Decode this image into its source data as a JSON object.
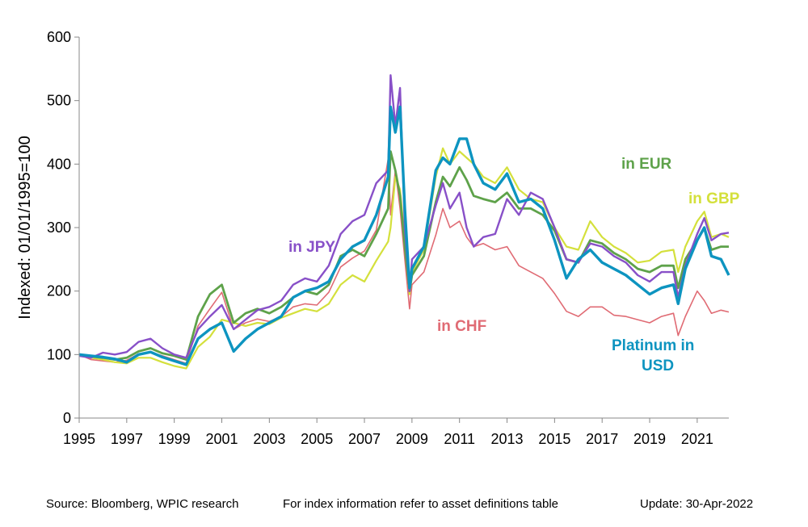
{
  "chart_data": {
    "type": "line",
    "title": "",
    "xlabel": "",
    "ylabel": "Indexed: 01/01/1995=100",
    "xlim": [
      1995,
      2022.33
    ],
    "ylim": [
      0,
      600
    ],
    "y_ticks": [
      "0",
      "100",
      "200",
      "300",
      "400",
      "500",
      "600"
    ],
    "x_ticks": [
      "1995",
      "1997",
      "1999",
      "2001",
      "2003",
      "2005",
      "2007",
      "2009",
      "2011",
      "2013",
      "2015",
      "2017",
      "2019",
      "2021"
    ],
    "grid": false,
    "legend": "inline labels",
    "series": [
      {
        "name": "in CHF",
        "color": "#e06b74",
        "x": [
          1995,
          1995.5,
          1996,
          1996.5,
          1997,
          1997.5,
          1998,
          1998.5,
          1999,
          1999.5,
          2000,
          2000.5,
          2001,
          2001.5,
          2002,
          2002.5,
          2003,
          2003.5,
          2004,
          2004.5,
          2005,
          2005.5,
          2006,
          2006.5,
          2007,
          2007.5,
          2008,
          2008.1,
          2008.3,
          2008.5,
          2008.7,
          2008.9,
          2009,
          2009.5,
          2010,
          2010.3,
          2010.6,
          2011,
          2011.3,
          2011.6,
          2012,
          2012.5,
          2013,
          2013.5,
          2014,
          2014.5,
          2015,
          2015.5,
          2016,
          2016.5,
          2017,
          2017.5,
          2018,
          2018.5,
          2019,
          2019.5,
          2020,
          2020.2,
          2020.5,
          2021,
          2021.3,
          2021.6,
          2022,
          2022.33
        ],
        "values": [
          100,
          92,
          90,
          88,
          91,
          101,
          104,
          98,
          92,
          86,
          145,
          172,
          198,
          140,
          150,
          156,
          152,
          160,
          175,
          180,
          178,
          198,
          238,
          252,
          263,
          296,
          408,
          320,
          390,
          330,
          250,
          172,
          210,
          230,
          288,
          330,
          300,
          310,
          285,
          270,
          275,
          265,
          270,
          240,
          230,
          220,
          196,
          168,
          160,
          175,
          175,
          162,
          160,
          155,
          150,
          160,
          165,
          130,
          160,
          200,
          185,
          165,
          170,
          167
        ]
      },
      {
        "name": "in GBP",
        "color": "#d4e03c",
        "x": [
          1995,
          1995.5,
          1996,
          1996.5,
          1997,
          1997.5,
          1998,
          1998.5,
          1999,
          1999.5,
          2000,
          2000.5,
          2001,
          2001.5,
          2002,
          2002.5,
          2003,
          2003.5,
          2004,
          2004.5,
          2005,
          2005.5,
          2006,
          2006.5,
          2007,
          2007.5,
          2008,
          2008.1,
          2008.3,
          2008.5,
          2008.7,
          2008.9,
          2009,
          2009.5,
          2010,
          2010.3,
          2010.6,
          2011,
          2011.3,
          2011.6,
          2012,
          2012.5,
          2013,
          2013.5,
          2014,
          2014.5,
          2015,
          2015.5,
          2016,
          2016.5,
          2017,
          2017.5,
          2018,
          2018.5,
          2019,
          2019.5,
          2020,
          2020.2,
          2020.5,
          2021,
          2021.3,
          2021.6,
          2022,
          2022.33
        ],
        "values": [
          100,
          95,
          92,
          88,
          86,
          95,
          95,
          88,
          82,
          78,
          112,
          128,
          155,
          150,
          145,
          150,
          148,
          158,
          165,
          172,
          168,
          180,
          210,
          225,
          215,
          248,
          278,
          300,
          380,
          360,
          280,
          195,
          230,
          265,
          380,
          425,
          400,
          420,
          410,
          400,
          380,
          370,
          395,
          360,
          345,
          340,
          300,
          270,
          265,
          310,
          285,
          270,
          260,
          245,
          248,
          262,
          265,
          230,
          270,
          310,
          325,
          285,
          290,
          285
        ]
      },
      {
        "name": "in EUR",
        "color": "#5ea24a",
        "x": [
          1995,
          1995.5,
          1996,
          1996.5,
          1997,
          1997.5,
          1998,
          1998.5,
          1999,
          1999.5,
          2000,
          2000.5,
          2001,
          2001.5,
          2002,
          2002.5,
          2003,
          2003.5,
          2004,
          2004.5,
          2005,
          2005.5,
          2006,
          2006.5,
          2007,
          2007.5,
          2008,
          2008.1,
          2008.3,
          2008.5,
          2008.7,
          2008.9,
          2009,
          2009.5,
          2010,
          2010.3,
          2010.6,
          2011,
          2011.3,
          2011.6,
          2012,
          2012.5,
          2013,
          2013.5,
          2014,
          2014.5,
          2015,
          2015.5,
          2016,
          2016.5,
          2017,
          2017.5,
          2018,
          2018.5,
          2019,
          2019.5,
          2020,
          2020.2,
          2020.5,
          2021,
          2021.3,
          2021.6,
          2022,
          2022.33
        ],
        "values": [
          100,
          97,
          95,
          92,
          95,
          105,
          110,
          102,
          98,
          92,
          160,
          195,
          210,
          150,
          165,
          172,
          165,
          175,
          190,
          200,
          195,
          210,
          255,
          265,
          255,
          290,
          330,
          420,
          390,
          350,
          270,
          200,
          225,
          255,
          340,
          380,
          365,
          395,
          375,
          350,
          345,
          340,
          355,
          330,
          330,
          320,
          295,
          250,
          245,
          280,
          275,
          260,
          250,
          235,
          230,
          240,
          240,
          205,
          250,
          280,
          300,
          265,
          270,
          270
        ]
      },
      {
        "name": "in JPY",
        "color": "#8850c8",
        "x": [
          1995,
          1995.5,
          1996,
          1996.5,
          1997,
          1997.5,
          1998,
          1998.5,
          1999,
          1999.5,
          2000,
          2000.5,
          2001,
          2001.5,
          2002,
          2002.5,
          2003,
          2003.5,
          2004,
          2004.5,
          2005,
          2005.5,
          2006,
          2006.5,
          2007,
          2007.5,
          2008,
          2008.1,
          2008.3,
          2008.5,
          2008.7,
          2008.9,
          2009,
          2009.5,
          2010,
          2010.3,
          2010.6,
          2011,
          2011.3,
          2011.6,
          2012,
          2012.5,
          2013,
          2013.5,
          2014,
          2014.5,
          2015,
          2015.5,
          2016,
          2016.5,
          2017,
          2017.5,
          2018,
          2018.5,
          2019,
          2019.5,
          2020,
          2020.2,
          2020.5,
          2021,
          2021.3,
          2021.6,
          2022,
          2022.33
        ],
        "values": [
          98,
          95,
          103,
          100,
          104,
          120,
          125,
          110,
          100,
          95,
          140,
          160,
          178,
          140,
          155,
          170,
          175,
          185,
          210,
          220,
          215,
          240,
          290,
          310,
          320,
          370,
          390,
          540,
          460,
          520,
          300,
          200,
          250,
          270,
          335,
          370,
          330,
          355,
          300,
          270,
          285,
          290,
          345,
          320,
          355,
          345,
          300,
          250,
          245,
          275,
          270,
          255,
          245,
          225,
          215,
          230,
          230,
          190,
          240,
          290,
          315,
          280,
          290,
          292
        ]
      },
      {
        "name": "Platinum in USD",
        "color": "#0d94c0",
        "x": [
          1995,
          1995.5,
          1996,
          1996.5,
          1997,
          1997.5,
          1998,
          1998.5,
          1999,
          1999.5,
          2000,
          2000.5,
          2001,
          2001.5,
          2002,
          2002.5,
          2003,
          2003.5,
          2004,
          2004.5,
          2005,
          2005.5,
          2006,
          2006.5,
          2007,
          2007.5,
          2008,
          2008.1,
          2008.3,
          2008.5,
          2008.7,
          2008.9,
          2009,
          2009.5,
          2010,
          2010.3,
          2010.6,
          2011,
          2011.3,
          2011.6,
          2012,
          2012.5,
          2013,
          2013.5,
          2014,
          2014.5,
          2015,
          2015.5,
          2016,
          2016.5,
          2017,
          2017.5,
          2018,
          2018.5,
          2019,
          2019.5,
          2020,
          2020.2,
          2020.5,
          2021,
          2021.3,
          2021.6,
          2022,
          2022.33
        ],
        "values": [
          100,
          98,
          96,
          93,
          88,
          100,
          104,
          96,
          90,
          84,
          125,
          140,
          150,
          105,
          125,
          140,
          150,
          160,
          190,
          200,
          205,
          215,
          250,
          270,
          280,
          320,
          380,
          490,
          450,
          490,
          330,
          205,
          235,
          270,
          390,
          410,
          400,
          440,
          440,
          400,
          370,
          360,
          385,
          340,
          345,
          330,
          280,
          220,
          250,
          265,
          245,
          235,
          225,
          210,
          195,
          205,
          210,
          180,
          235,
          280,
          300,
          255,
          250,
          225
        ]
      }
    ]
  },
  "labels": {
    "jpy": "in JPY",
    "eur": "in EUR",
    "gbp": "in GBP",
    "chf": "in CHF",
    "usd_line1": "Platinum  in",
    "usd_line2": "USD"
  },
  "footer": {
    "source": "Source: Bloomberg, WPIC research",
    "note": "For index information refer to asset definitions table",
    "update": "Update: 30-Apr-2022"
  }
}
